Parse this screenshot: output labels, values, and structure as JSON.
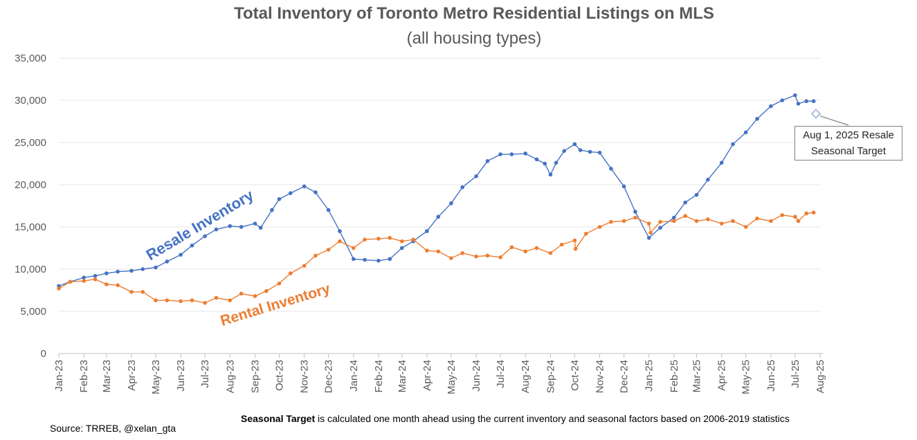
{
  "title": "Total Inventory of Toronto Metro Residential Listings on MLS",
  "subtitle": "(all housing types)",
  "source": "Source: TRREB, @xelan_gta",
  "note": {
    "bold": "Seasonal Target",
    "text": " is calculated one month ahead using the current inventory and seasonal factors based on 2006-2019 statistics"
  },
  "callout": {
    "line1": "Aug 1, 2025 Resale",
    "line2": "Seasonal Target"
  },
  "chart_data": {
    "type": "line",
    "ylim": [
      0,
      35000
    ],
    "y_ticks": [
      0,
      5000,
      10000,
      15000,
      20000,
      25000,
      30000,
      35000
    ],
    "y_tick_labels": [
      "0",
      "5,000",
      "10,000",
      "15,000",
      "20,000",
      "25,000",
      "30,000",
      "35,000"
    ],
    "x_range": [
      "2023-01-01",
      "2025-08-01"
    ],
    "x_tick_labels": [
      "Jan-23",
      "Feb-23",
      "Mar-23",
      "Apr-23",
      "May-23",
      "Jun-23",
      "Jul-23",
      "Aug-23",
      "Sep-23",
      "Oct-23",
      "Nov-23",
      "Dec-23",
      "Jan-24",
      "Feb-24",
      "Mar-24",
      "Apr-24",
      "May-24",
      "Jun-24",
      "Jul-24",
      "Aug-24",
      "Sep-24",
      "Oct-24",
      "Nov-24",
      "Dec-24",
      "Jan-25",
      "Feb-25",
      "Mar-25",
      "Apr-25",
      "May-25",
      "Jun-25",
      "Jul-25",
      "Aug-25"
    ],
    "grid": true,
    "series": [
      {
        "name": "Resale Inventory",
        "color": "#4472c4",
        "label_color": "#4472c4",
        "points": [
          [
            "2023-01-01",
            8000
          ],
          [
            "2023-01-15",
            8500
          ],
          [
            "2023-02-01",
            9000
          ],
          [
            "2023-02-15",
            9200
          ],
          [
            "2023-03-01",
            9500
          ],
          [
            "2023-03-15",
            9700
          ],
          [
            "2023-04-01",
            9800
          ],
          [
            "2023-04-15",
            10000
          ],
          [
            "2023-05-01",
            10200
          ],
          [
            "2023-05-15",
            10900
          ],
          [
            "2023-06-01",
            11700
          ],
          [
            "2023-06-15",
            12800
          ],
          [
            "2023-07-01",
            13900
          ],
          [
            "2023-07-15",
            14700
          ],
          [
            "2023-08-01",
            15100
          ],
          [
            "2023-08-15",
            15000
          ],
          [
            "2023-09-01",
            15400
          ],
          [
            "2023-09-08",
            14900
          ],
          [
            "2023-09-22",
            17000
          ],
          [
            "2023-10-01",
            18300
          ],
          [
            "2023-10-15",
            19000
          ],
          [
            "2023-11-01",
            19800
          ],
          [
            "2023-11-15",
            19100
          ],
          [
            "2023-12-01",
            17000
          ],
          [
            "2023-12-15",
            14500
          ],
          [
            "2024-01-01",
            11200
          ],
          [
            "2024-01-15",
            11100
          ],
          [
            "2024-02-01",
            11000
          ],
          [
            "2024-02-15",
            11200
          ],
          [
            "2024-03-01",
            12500
          ],
          [
            "2024-03-15",
            13300
          ],
          [
            "2024-04-01",
            14500
          ],
          [
            "2024-04-15",
            16200
          ],
          [
            "2024-05-01",
            17800
          ],
          [
            "2024-05-15",
            19700
          ],
          [
            "2024-06-01",
            21000
          ],
          [
            "2024-06-15",
            22800
          ],
          [
            "2024-07-01",
            23600
          ],
          [
            "2024-07-15",
            23600
          ],
          [
            "2024-08-01",
            23700
          ],
          [
            "2024-08-15",
            23000
          ],
          [
            "2024-08-25",
            22500
          ],
          [
            "2024-09-01",
            21200
          ],
          [
            "2024-09-08",
            22600
          ],
          [
            "2024-09-18",
            24000
          ],
          [
            "2024-10-01",
            24800
          ],
          [
            "2024-10-08",
            24100
          ],
          [
            "2024-10-20",
            23900
          ],
          [
            "2024-11-01",
            23800
          ],
          [
            "2024-11-15",
            21900
          ],
          [
            "2024-12-01",
            19800
          ],
          [
            "2024-12-15",
            16800
          ],
          [
            "2025-01-01",
            13700
          ],
          [
            "2025-01-15",
            14900
          ],
          [
            "2025-02-01",
            16100
          ],
          [
            "2025-02-15",
            17900
          ],
          [
            "2025-03-01",
            18800
          ],
          [
            "2025-03-15",
            20600
          ],
          [
            "2025-04-01",
            22600
          ],
          [
            "2025-04-15",
            24800
          ],
          [
            "2025-05-01",
            26200
          ],
          [
            "2025-05-15",
            27800
          ],
          [
            "2025-06-01",
            29300
          ],
          [
            "2025-06-15",
            30000
          ],
          [
            "2025-07-01",
            30600
          ],
          [
            "2025-07-05",
            29600
          ],
          [
            "2025-07-15",
            29900
          ],
          [
            "2025-07-24",
            29900
          ]
        ]
      },
      {
        "name": "Rental Inventory",
        "color": "#ed7d31",
        "label_color": "#ed7d31",
        "points": [
          [
            "2023-01-01",
            7700
          ],
          [
            "2023-01-15",
            8500
          ],
          [
            "2023-02-01",
            8600
          ],
          [
            "2023-02-15",
            8800
          ],
          [
            "2023-03-01",
            8200
          ],
          [
            "2023-03-15",
            8100
          ],
          [
            "2023-04-01",
            7300
          ],
          [
            "2023-04-15",
            7300
          ],
          [
            "2023-05-01",
            6300
          ],
          [
            "2023-05-15",
            6300
          ],
          [
            "2023-06-01",
            6200
          ],
          [
            "2023-06-15",
            6300
          ],
          [
            "2023-07-01",
            6000
          ],
          [
            "2023-07-15",
            6600
          ],
          [
            "2023-08-01",
            6300
          ],
          [
            "2023-08-15",
            7100
          ],
          [
            "2023-09-01",
            6800
          ],
          [
            "2023-09-15",
            7400
          ],
          [
            "2023-10-01",
            8300
          ],
          [
            "2023-10-15",
            9500
          ],
          [
            "2023-11-01",
            10400
          ],
          [
            "2023-11-15",
            11600
          ],
          [
            "2023-12-01",
            12300
          ],
          [
            "2023-12-15",
            13300
          ],
          [
            "2024-01-01",
            12500
          ],
          [
            "2024-01-15",
            13500
          ],
          [
            "2024-02-01",
            13600
          ],
          [
            "2024-02-15",
            13700
          ],
          [
            "2024-03-01",
            13300
          ],
          [
            "2024-03-15",
            13500
          ],
          [
            "2024-04-01",
            12200
          ],
          [
            "2024-04-15",
            12100
          ],
          [
            "2024-05-01",
            11300
          ],
          [
            "2024-05-15",
            11900
          ],
          [
            "2024-06-01",
            11500
          ],
          [
            "2024-06-15",
            11600
          ],
          [
            "2024-07-01",
            11400
          ],
          [
            "2024-07-15",
            12600
          ],
          [
            "2024-08-01",
            12100
          ],
          [
            "2024-08-15",
            12500
          ],
          [
            "2024-09-01",
            11900
          ],
          [
            "2024-09-15",
            12900
          ],
          [
            "2024-10-01",
            13400
          ],
          [
            "2024-10-02",
            12400
          ],
          [
            "2024-10-15",
            14200
          ],
          [
            "2024-11-01",
            15000
          ],
          [
            "2024-11-15",
            15600
          ],
          [
            "2024-12-01",
            15700
          ],
          [
            "2024-12-15",
            16100
          ],
          [
            "2025-01-01",
            15400
          ],
          [
            "2025-01-03",
            14300
          ],
          [
            "2025-01-15",
            15600
          ],
          [
            "2025-02-01",
            15700
          ],
          [
            "2025-02-15",
            16300
          ],
          [
            "2025-03-01",
            15700
          ],
          [
            "2025-03-15",
            15900
          ],
          [
            "2025-04-01",
            15400
          ],
          [
            "2025-04-15",
            15700
          ],
          [
            "2025-05-01",
            15000
          ],
          [
            "2025-05-15",
            16000
          ],
          [
            "2025-06-01",
            15700
          ],
          [
            "2025-06-15",
            16400
          ],
          [
            "2025-07-01",
            16200
          ],
          [
            "2025-07-05",
            15700
          ],
          [
            "2025-07-15",
            16600
          ],
          [
            "2025-07-24",
            16700
          ]
        ]
      }
    ],
    "annotation": {
      "label": "Aug 1, 2025 Resale Seasonal Target",
      "date": "2025-08-01",
      "value": 28400,
      "marker_color": "#a9bde3"
    }
  }
}
